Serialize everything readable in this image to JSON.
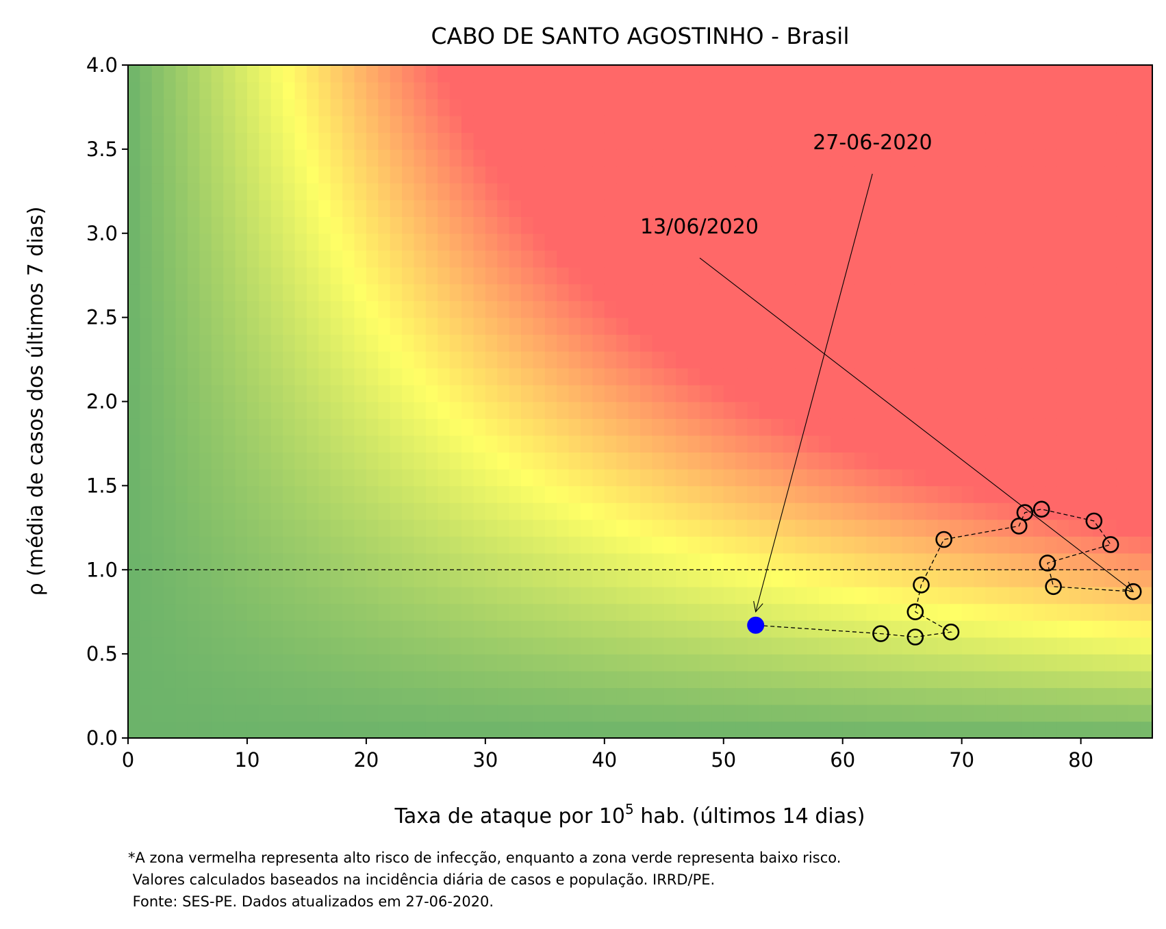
{
  "chart_data": {
    "type": "scatter",
    "title": "CABO DE SANTO AGOSTINHO - Brasil",
    "xlabel_prefix": "Taxa de ataque por 10",
    "xlabel_sup": "5",
    "xlabel_suffix": " hab. (últimos 14 dias)",
    "ylabel": "ρ (média de casos dos últimos 7 dias)",
    "xlim": [
      0,
      86
    ],
    "ylim": [
      0,
      4
    ],
    "x_ticks": [
      0,
      10,
      20,
      30,
      40,
      50,
      60,
      70,
      80
    ],
    "y_ticks": [
      "0.0",
      "0.5",
      "1.0",
      "1.5",
      "2.0",
      "2.5",
      "3.0",
      "3.5",
      "4.0"
    ],
    "reference_line_y": 1.0,
    "background": "risk heatmap: green (low) → yellow → red (high)",
    "colors": {
      "red": "#ff6868",
      "yellow": "#ffff66",
      "green": "#6cb36a",
      "marker_current": "#0000ff"
    },
    "points": [
      {
        "x": 84.4,
        "y": 0.87
      },
      {
        "x": 77.7,
        "y": 0.9
      },
      {
        "x": 77.2,
        "y": 1.04
      },
      {
        "x": 82.5,
        "y": 1.15
      },
      {
        "x": 81.1,
        "y": 1.29
      },
      {
        "x": 76.7,
        "y": 1.36
      },
      {
        "x": 75.3,
        "y": 1.34
      },
      {
        "x": 74.8,
        "y": 1.26
      },
      {
        "x": 68.5,
        "y": 1.18
      },
      {
        "x": 66.6,
        "y": 0.91
      },
      {
        "x": 66.1,
        "y": 0.75
      },
      {
        "x": 69.1,
        "y": 0.63
      },
      {
        "x": 66.1,
        "y": 0.6
      },
      {
        "x": 63.2,
        "y": 0.62
      },
      {
        "x": 52.7,
        "y": 0.67
      }
    ],
    "annotations": [
      {
        "text": "27-06-2020",
        "text_x": 57.5,
        "text_y": 3.5,
        "target_x": 52.7,
        "target_y": 0.75
      },
      {
        "text": "13/06/2020",
        "text_x": 43.0,
        "text_y": 3.0,
        "target_x": 84.4,
        "target_y": 0.87
      }
    ],
    "footnote": [
      "*A zona vermelha representa alto risco de infecção, enquanto a zona verde representa baixo risco.",
      " Valores calculados baseados na incidência diária de casos e população. IRRD/PE.",
      " Fonte: SES-PE. Dados atualizados em 27-06-2020."
    ]
  }
}
